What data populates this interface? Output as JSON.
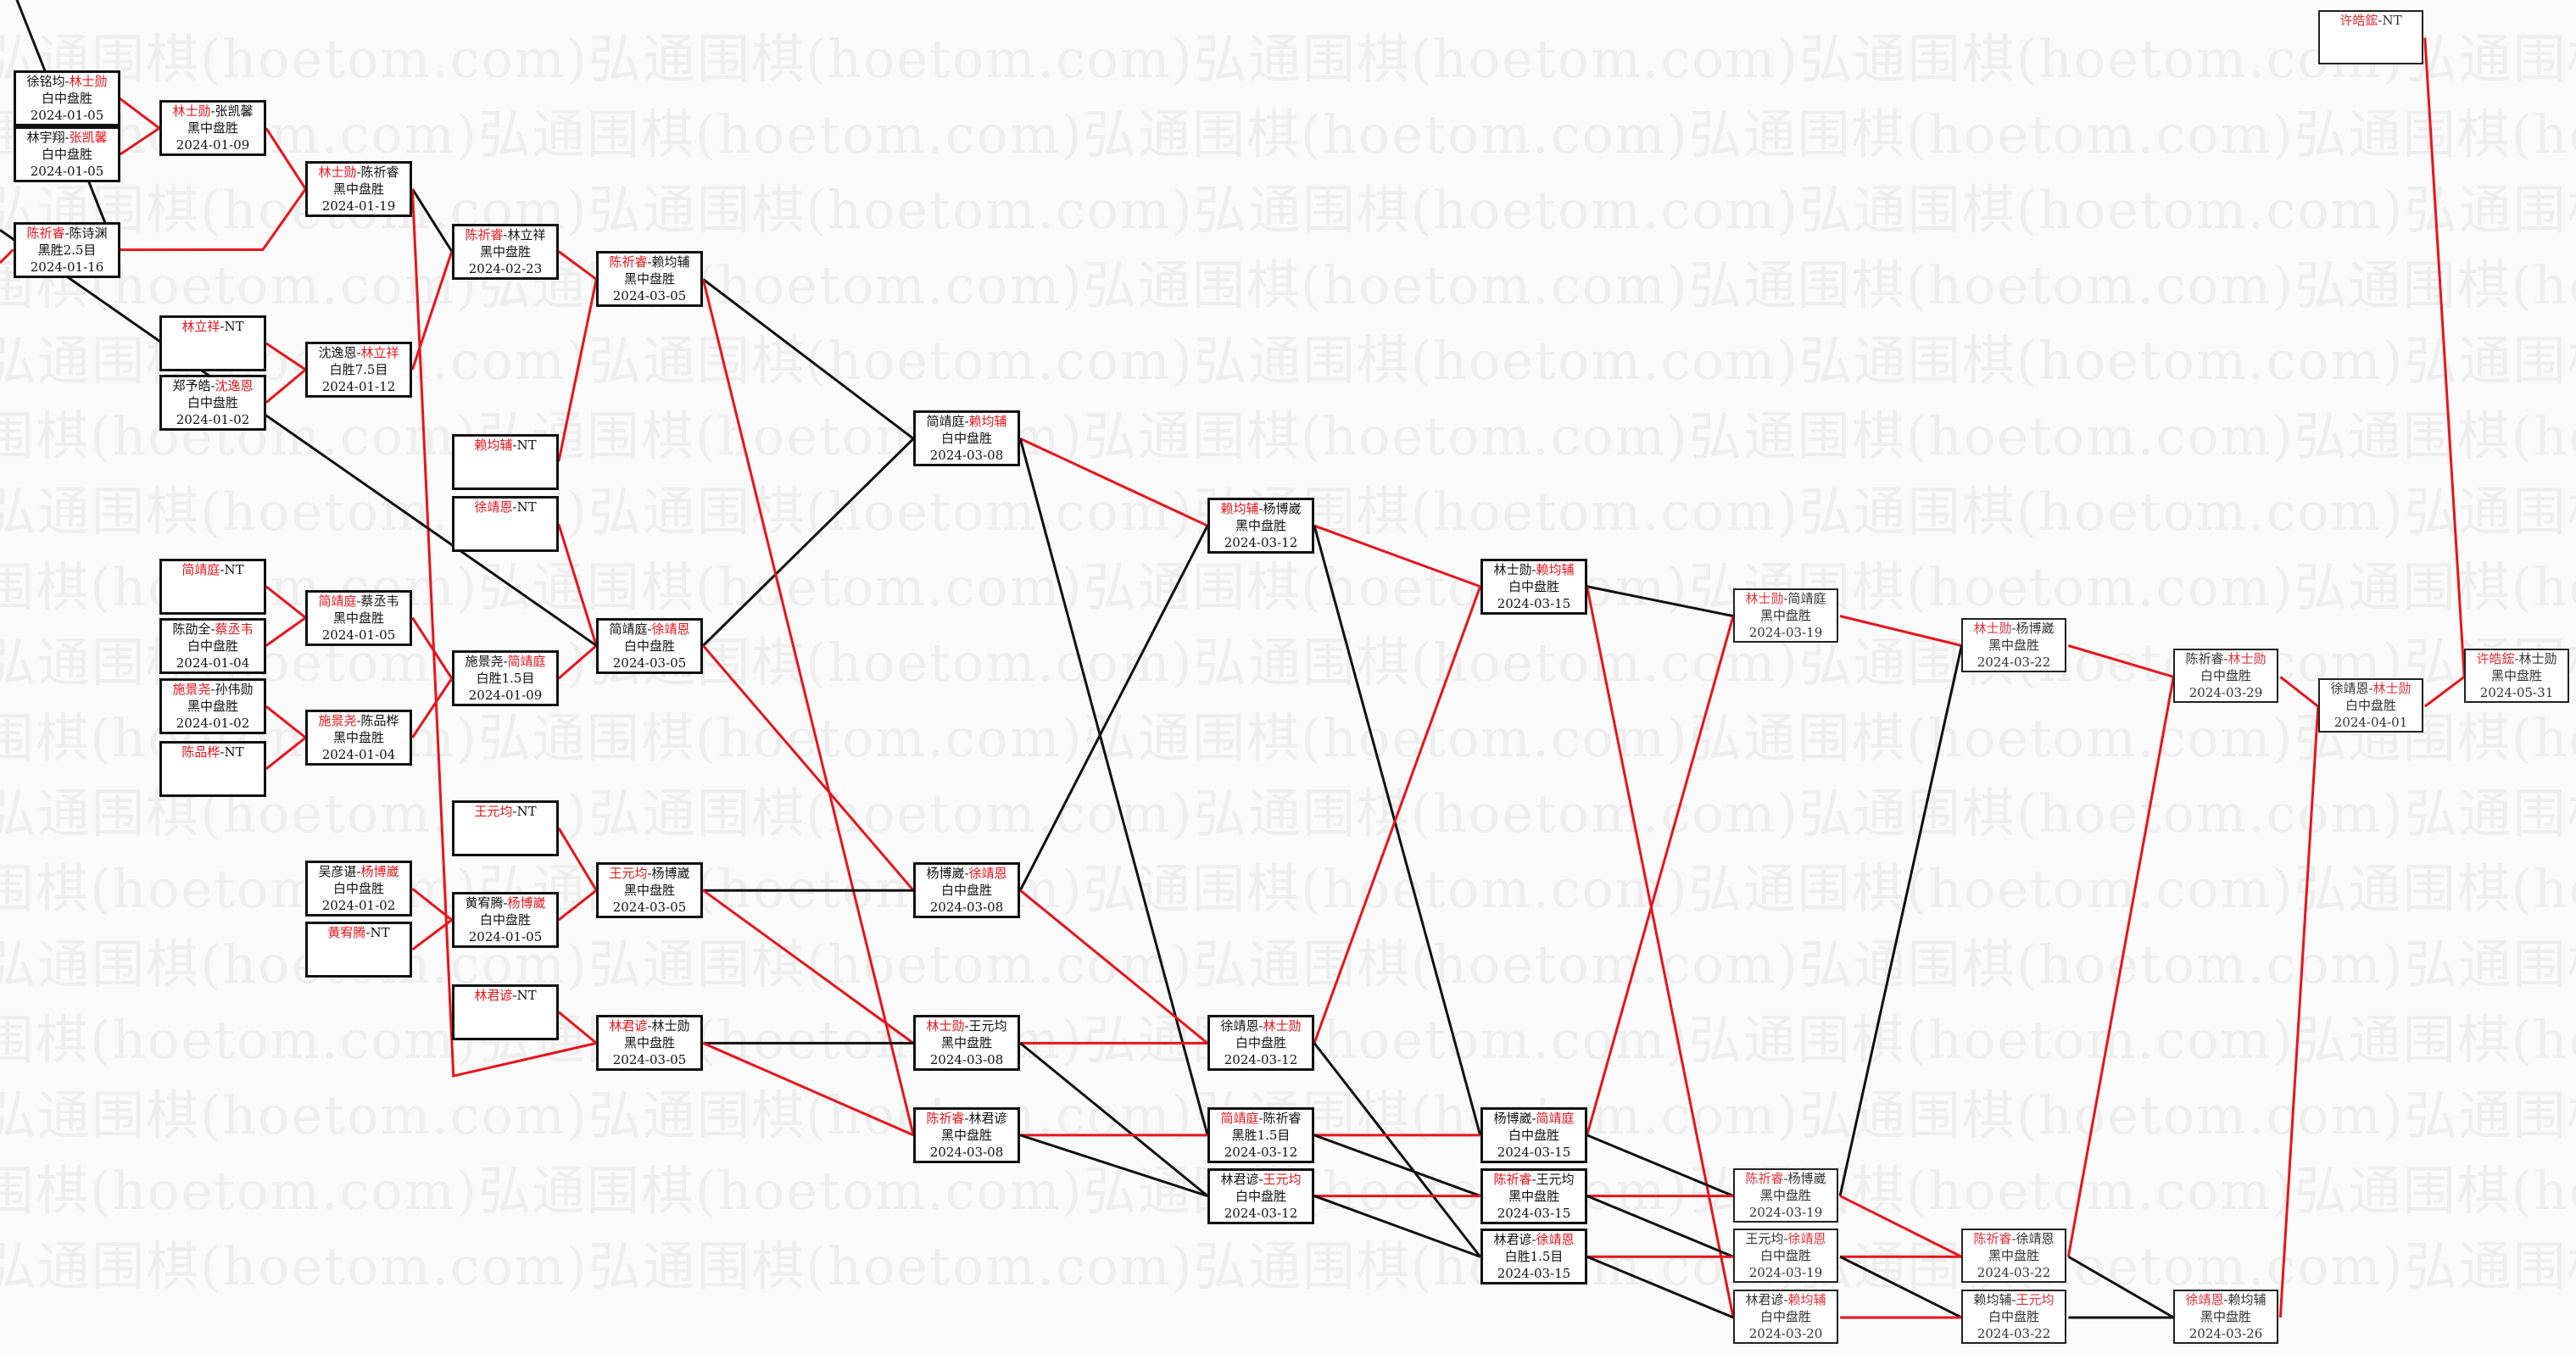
{
  "watermark": "弘通围棋(hoetom.com)弘通围棋(hoetom.com)弘通围棋(hoetom.com)弘通围棋(hoetom.com)弘通围棋(hoetom.com)",
  "colors": {
    "winner_text": "#e8141b",
    "winner_line": "#e8141b",
    "loser_line": "#111111",
    "border": "#111111"
  },
  "matches": [
    {
      "id": "A1",
      "p1": "徐铭均",
      "p2": "林士勋",
      "winner": 2,
      "result": "白中盘胜",
      "date": "2024-01-05"
    },
    {
      "id": "A2",
      "p1": "林宇翔",
      "p2": "张凯馨",
      "winner": 2,
      "result": "白中盘胜",
      "date": "2024-01-05"
    },
    {
      "id": "A3",
      "p1": "陈祈睿",
      "p2": "陈诗渊",
      "winner": 1,
      "result": "黑胜2.5目",
      "date": "2024-01-16"
    },
    {
      "id": "B1",
      "p1": "林士勋",
      "p2": "张凯馨",
      "winner": 1,
      "result": "黑中盘胜",
      "date": "2024-01-09"
    },
    {
      "id": "B2",
      "p1": "林立祥",
      "p2": "NT",
      "winner": 1,
      "result": "",
      "date": ""
    },
    {
      "id": "B3",
      "p1": "郑予皓",
      "p2": "沈逸恩",
      "winner": 2,
      "result": "白中盘胜",
      "date": "2024-01-02"
    },
    {
      "id": "B4",
      "p1": "简靖庭",
      "p2": "NT",
      "winner": 1,
      "result": "",
      "date": ""
    },
    {
      "id": "B5",
      "p1": "陈劭全",
      "p2": "蔡丞韦",
      "winner": 2,
      "result": "白中盘胜",
      "date": "2024-01-04"
    },
    {
      "id": "B6",
      "p1": "施景尧",
      "p2": "孙伟勋",
      "winner": 1,
      "result": "黑中盘胜",
      "date": "2024-01-02"
    },
    {
      "id": "B7",
      "p1": "陈品桦",
      "p2": "NT",
      "winner": 1,
      "result": "",
      "date": ""
    },
    {
      "id": "C1",
      "p1": "林士勋",
      "p2": "陈祈睿",
      "winner": 1,
      "result": "黑中盘胜",
      "date": "2024-01-19"
    },
    {
      "id": "C2",
      "p1": "沈逸恩",
      "p2": "林立祥",
      "winner": 2,
      "result": "白胜7.5目",
      "date": "2024-01-12"
    },
    {
      "id": "C3",
      "p1": "简靖庭",
      "p2": "蔡丞韦",
      "winner": 1,
      "result": "黑中盘胜",
      "date": "2024-01-05"
    },
    {
      "id": "C4",
      "p1": "施景尧",
      "p2": "陈品桦",
      "winner": 1,
      "result": "黑中盘胜",
      "date": "2024-01-04"
    },
    {
      "id": "C5",
      "p1": "吴彦谌",
      "p2": "杨博崴",
      "winner": 2,
      "result": "白中盘胜",
      "date": "2024-01-02"
    },
    {
      "id": "C6",
      "p1": "黄宥腾",
      "p2": "NT",
      "winner": 1,
      "result": "",
      "date": ""
    },
    {
      "id": "D1",
      "p1": "陈祈睿",
      "p2": "林立祥",
      "winner": 1,
      "result": "黑中盘胜",
      "date": "2024-02-23"
    },
    {
      "id": "D2",
      "p1": "赖均辅",
      "p2": "NT",
      "winner": 1,
      "result": "",
      "date": ""
    },
    {
      "id": "D3",
      "p1": "徐靖恩",
      "p2": "NT",
      "winner": 1,
      "result": "",
      "date": ""
    },
    {
      "id": "D4",
      "p1": "施景尧",
      "p2": "简靖庭",
      "winner": 2,
      "result": "白胜1.5目",
      "date": "2024-01-09"
    },
    {
      "id": "D5",
      "p1": "王元均",
      "p2": "NT",
      "winner": 1,
      "result": "",
      "date": ""
    },
    {
      "id": "D6",
      "p1": "黄宥腾",
      "p2": "杨博崴",
      "winner": 2,
      "result": "白中盘胜",
      "date": "2024-01-05"
    },
    {
      "id": "D7",
      "p1": "林君谚",
      "p2": "NT",
      "winner": 1,
      "result": "",
      "date": ""
    },
    {
      "id": "E1",
      "p1": "陈祈睿",
      "p2": "赖均辅",
      "winner": 1,
      "result": "黑中盘胜",
      "date": "2024-03-05"
    },
    {
      "id": "E2",
      "p1": "简靖庭",
      "p2": "徐靖恩",
      "winner": 2,
      "result": "白中盘胜",
      "date": "2024-03-05"
    },
    {
      "id": "E3",
      "p1": "王元均",
      "p2": "杨博崴",
      "winner": 1,
      "result": "黑中盘胜",
      "date": "2024-03-05"
    },
    {
      "id": "E4",
      "p1": "林君谚",
      "p2": "林士勋",
      "winner": 1,
      "result": "黑中盘胜",
      "date": "2024-03-05"
    },
    {
      "id": "F1",
      "p1": "简靖庭",
      "p2": "赖均辅",
      "winner": 2,
      "result": "白中盘胜",
      "date": "2024-03-08"
    },
    {
      "id": "F2",
      "p1": "杨博崴",
      "p2": "徐靖恩",
      "winner": 2,
      "result": "白中盘胜",
      "date": "2024-03-08"
    },
    {
      "id": "F3",
      "p1": "林士勋",
      "p2": "王元均",
      "winner": 1,
      "result": "黑中盘胜",
      "date": "2024-03-08"
    },
    {
      "id": "F4",
      "p1": "陈祈睿",
      "p2": "林君谚",
      "winner": 1,
      "result": "黑中盘胜",
      "date": "2024-03-08"
    },
    {
      "id": "G1",
      "p1": "赖均辅",
      "p2": "杨博崴",
      "winner": 1,
      "result": "黑中盘胜",
      "date": "2024-03-12"
    },
    {
      "id": "G2",
      "p1": "徐靖恩",
      "p2": "林士勋",
      "winner": 2,
      "result": "白中盘胜",
      "date": "2024-03-12"
    },
    {
      "id": "G3",
      "p1": "简靖庭",
      "p2": "陈祈睿",
      "winner": 1,
      "result": "黑胜1.5目",
      "date": "2024-03-12"
    },
    {
      "id": "G4",
      "p1": "林君谚",
      "p2": "王元均",
      "winner": 2,
      "result": "白中盘胜",
      "date": "2024-03-12"
    },
    {
      "id": "H1",
      "p1": "林士勋",
      "p2": "赖均辅",
      "winner": 2,
      "result": "白中盘胜",
      "date": "2024-03-15"
    },
    {
      "id": "H2",
      "p1": "杨博崴",
      "p2": "简靖庭",
      "winner": 2,
      "result": "白中盘胜",
      "date": "2024-03-15"
    },
    {
      "id": "H3",
      "p1": "陈祈睿",
      "p2": "王元均",
      "winner": 1,
      "result": "黑中盘胜",
      "date": "2024-03-15"
    },
    {
      "id": "H4",
      "p1": "林君谚",
      "p2": "徐靖恩",
      "winner": 2,
      "result": "白胜1.5目",
      "date": "2024-03-15"
    },
    {
      "id": "I1",
      "p1": "林士勋",
      "p2": "简靖庭",
      "winner": 1,
      "result": "黑中盘胜",
      "date": "2024-03-19"
    },
    {
      "id": "I2",
      "p1": "陈祈睿",
      "p2": "杨博崴",
      "winner": 1,
      "result": "黑中盘胜",
      "date": "2024-03-19"
    },
    {
      "id": "I3",
      "p1": "王元均",
      "p2": "徐靖恩",
      "winner": 2,
      "result": "白中盘胜",
      "date": "2024-03-19"
    },
    {
      "id": "I4",
      "p1": "林君谚",
      "p2": "赖均辅",
      "winner": 2,
      "result": "白中盘胜",
      "date": "2024-03-20"
    },
    {
      "id": "J1",
      "p1": "林士勋",
      "p2": "杨博崴",
      "winner": 1,
      "result": "黑中盘胜",
      "date": "2024-03-22"
    },
    {
      "id": "J2",
      "p1": "陈祈睿",
      "p2": "徐靖恩",
      "winner": 1,
      "result": "黑中盘胜",
      "date": "2024-03-22"
    },
    {
      "id": "J3",
      "p1": "赖均辅",
      "p2": "王元均",
      "winner": 2,
      "result": "白中盘胜",
      "date": "2024-03-22"
    },
    {
      "id": "K1",
      "p1": "陈祈睿",
      "p2": "林士勋",
      "winner": 2,
      "result": "白中盘胜",
      "date": "2024-03-29"
    },
    {
      "id": "K2",
      "p1": "徐靖恩",
      "p2": "赖均辅",
      "winner": 1,
      "result": "黑中盘胜",
      "date": "2024-03-26"
    },
    {
      "id": "L0",
      "p1": "许皓鋐",
      "p2": "NT",
      "winner": 1,
      "result": "",
      "date": ""
    },
    {
      "id": "L1",
      "p1": "徐靖恩",
      "p2": "林士勋",
      "winner": 2,
      "result": "白中盘胜",
      "date": "2024-04-01"
    },
    {
      "id": "M1",
      "p1": "许皓鋐",
      "p2": "林士勋",
      "winner": 1,
      "result": "黑中盘胜",
      "date": "2024-05-31"
    }
  ],
  "edges": [
    [
      "A1",
      "B1",
      "red"
    ],
    [
      "A2",
      "B1",
      "red"
    ],
    [
      "B1",
      "C1",
      "red"
    ],
    [
      "A3",
      "C1",
      "red"
    ],
    [
      "C1",
      "D1",
      "black"
    ],
    [
      "C1",
      "E4",
      "red"
    ],
    [
      "B2",
      "C2",
      "red"
    ],
    [
      "B3",
      "C2",
      "red"
    ],
    [
      "C2",
      "D1",
      "red"
    ],
    [
      "D1",
      "E1",
      "red"
    ],
    [
      "D2",
      "E1",
      "red"
    ],
    [
      "D3",
      "E2",
      "red"
    ],
    [
      "B4",
      "C3",
      "red"
    ],
    [
      "B5",
      "C3",
      "red"
    ],
    [
      "C3",
      "D4",
      "red"
    ],
    [
      "B6",
      "C4",
      "red"
    ],
    [
      "B7",
      "C4",
      "red"
    ],
    [
      "C4",
      "D4",
      "red"
    ],
    [
      "D4",
      "E2",
      "red"
    ],
    [
      "C5",
      "D6",
      "red"
    ],
    [
      "C6",
      "D6",
      "red"
    ],
    [
      "D5",
      "E3",
      "red"
    ],
    [
      "D6",
      "E3",
      "red"
    ],
    [
      "D7",
      "E4",
      "red"
    ],
    [
      "E1",
      "F1",
      "black"
    ],
    [
      "E2",
      "F1",
      "black"
    ],
    [
      "E1",
      "F4",
      "red"
    ],
    [
      "E2",
      "F2",
      "red"
    ],
    [
      "E3",
      "F2",
      "black"
    ],
    [
      "E3",
      "F3",
      "red"
    ],
    [
      "E4",
      "F3",
      "black"
    ],
    [
      "E4",
      "F4",
      "red"
    ],
    [
      "F1",
      "G1",
      "red"
    ],
    [
      "F1",
      "G3",
      "black"
    ],
    [
      "F2",
      "G1",
      "black"
    ],
    [
      "F2",
      "G2",
      "red"
    ],
    [
      "F3",
      "G2",
      "red"
    ],
    [
      "F3",
      "G4",
      "black"
    ],
    [
      "F4",
      "G3",
      "red"
    ],
    [
      "F4",
      "G4",
      "black"
    ],
    [
      "G1",
      "H1",
      "red"
    ],
    [
      "G1",
      "H2",
      "black"
    ],
    [
      "G2",
      "H1",
      "red"
    ],
    [
      "G2",
      "H4",
      "black"
    ],
    [
      "G3",
      "H2",
      "red"
    ],
    [
      "G3",
      "H3",
      "black"
    ],
    [
      "G4",
      "H3",
      "red"
    ],
    [
      "G4",
      "H4",
      "black"
    ],
    [
      "H1",
      "I1",
      "black"
    ],
    [
      "H1",
      "I4",
      "red"
    ],
    [
      "H2",
      "I1",
      "red"
    ],
    [
      "H2",
      "I2",
      "black"
    ],
    [
      "H3",
      "I2",
      "red"
    ],
    [
      "H3",
      "I3",
      "black"
    ],
    [
      "H4",
      "I3",
      "red"
    ],
    [
      "H4",
      "I4",
      "black"
    ],
    [
      "I1",
      "J1",
      "red"
    ],
    [
      "I2",
      "J1",
      "black"
    ],
    [
      "I2",
      "J2",
      "red"
    ],
    [
      "I3",
      "J2",
      "red"
    ],
    [
      "I3",
      "J3",
      "black"
    ],
    [
      "I4",
      "J3",
      "red"
    ],
    [
      "J1",
      "K1",
      "red"
    ],
    [
      "J2",
      "K1",
      "red"
    ],
    [
      "J2",
      "K2",
      "black"
    ],
    [
      "J3",
      "K2",
      "black"
    ],
    [
      "K1",
      "L1",
      "red"
    ],
    [
      "K2",
      "L1",
      "red"
    ],
    [
      "L1",
      "M1",
      "red"
    ],
    [
      "L0",
      "M1",
      "red"
    ]
  ]
}
